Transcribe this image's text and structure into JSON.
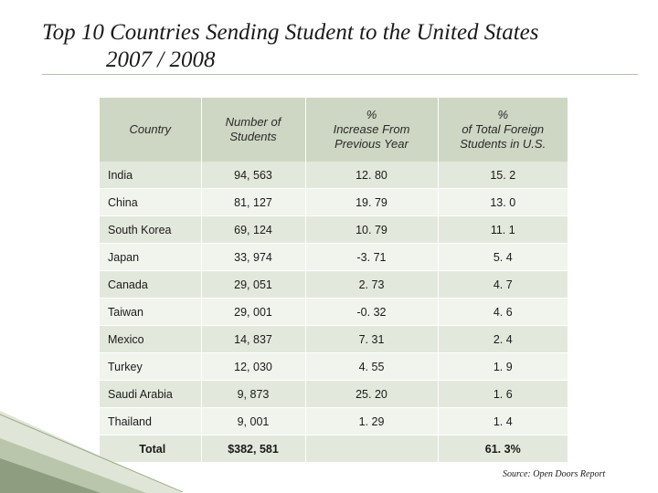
{
  "slide": {
    "title": "Top 10 Countries Sending Student to the United States",
    "subtitle": "2007 / 2008"
  },
  "table": {
    "headers": [
      {
        "line1": "Country",
        "line2": ""
      },
      {
        "line1": "Number of",
        "line2": "Students"
      },
      {
        "line1": "%",
        "line2": "Increase From",
        "line3": "Previous Year"
      },
      {
        "line1": "%",
        "line2": "of Total Foreign",
        "line3": "Students in U.S."
      }
    ],
    "rows": [
      [
        "India",
        "94, 563",
        "12. 80",
        "15. 2"
      ],
      [
        "China",
        "81, 127",
        "19. 79",
        "13. 0"
      ],
      [
        "South Korea",
        "69, 124",
        "10. 79",
        "11. 1"
      ],
      [
        "Japan",
        "33, 974",
        "-3. 71",
        "5. 4"
      ],
      [
        "Canada",
        "29, 051",
        "2. 73",
        "4. 7"
      ],
      [
        "Taiwan",
        "29, 001",
        "-0. 32",
        "4. 6"
      ],
      [
        "Mexico",
        "14, 837",
        "7. 31",
        "2. 4"
      ],
      [
        "Turkey",
        "12, 030",
        "4. 55",
        "1. 9"
      ],
      [
        "Saudi Arabia",
        "9, 873",
        "25. 20",
        "1. 6"
      ],
      [
        "Thailand",
        "9, 001",
        "1. 29",
        "1. 4"
      ]
    ],
    "total": [
      "Total",
      "$382, 581",
      "",
      "61. 3%"
    ]
  },
  "footer": {
    "source": "Source:  Open Doors Report"
  },
  "colors": {
    "header_bg": "#cdd7c3",
    "row_dark": "#e3e8dc",
    "row_light": "#f1f4ed",
    "accent": "#7a8a6a"
  }
}
